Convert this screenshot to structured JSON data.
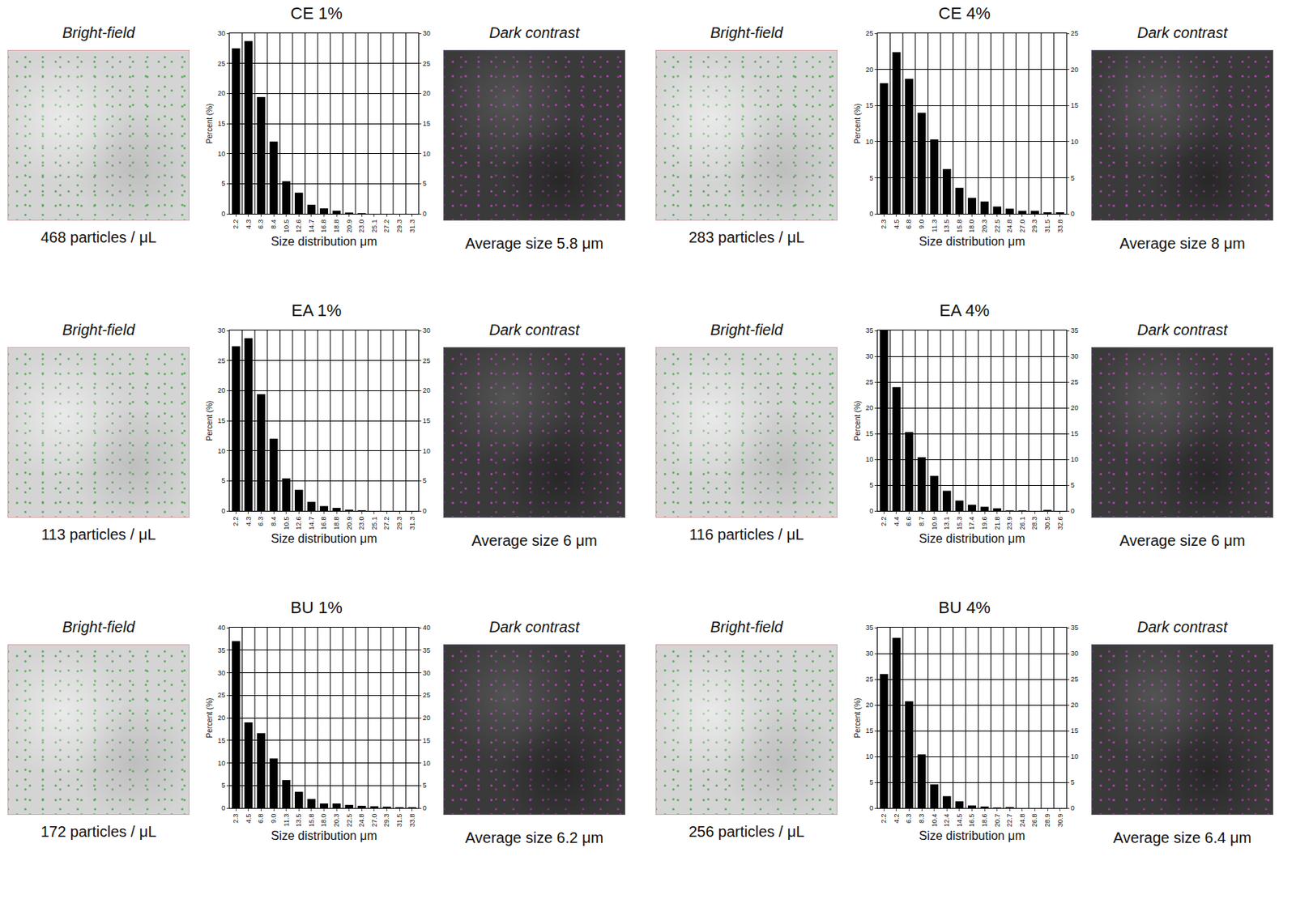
{
  "chart_data": [
    {
      "type": "bar",
      "title": "CE 1%",
      "x_label": "Size distribution μm",
      "y_label": "Percent (%)",
      "categories": [
        "2.2",
        "4.3",
        "6.3",
        "8.4",
        "10.5",
        "12.6",
        "14.7",
        "16.8",
        "18.8",
        "20.9",
        "23.0",
        "25.1",
        "27.2",
        "29.3",
        "31.3"
      ],
      "values": [
        27.5,
        28.7,
        19.4,
        12,
        5.4,
        3.5,
        1.5,
        0.9,
        0.5,
        0.2,
        0.1,
        0,
        0,
        0,
        0
      ],
      "color": "#000000",
      "ylim": [
        0,
        30
      ],
      "yticks": [
        0,
        5,
        10,
        15,
        20,
        25,
        30
      ],
      "grid": true,
      "image_labels": [
        "Bright-field",
        "Dark contrast"
      ],
      "annotations": [
        "468 particles / μL",
        "Average size 5.8 μm"
      ]
    },
    {
      "type": "bar",
      "title": "CE 4%",
      "x_label": "Size distribution μm",
      "y_label": "Percent (%)",
      "categories": [
        "2.3",
        "4.5",
        "6.8",
        "9.0",
        "11.3",
        "13.5",
        "15.8",
        "18.0",
        "20.3",
        "22.5",
        "24.8",
        "27.0",
        "29.3",
        "31.5",
        "33.8"
      ],
      "values": [
        18.1,
        22.4,
        18.7,
        14,
        10.3,
        6.2,
        3.6,
        2.2,
        1.7,
        1.0,
        0.7,
        0.4,
        0.4,
        0.2,
        0.2
      ],
      "color": "#000000",
      "ylim": [
        0,
        25
      ],
      "yticks": [
        0,
        5,
        10,
        15,
        20,
        25
      ],
      "grid": true,
      "image_labels": [
        "Bright-field",
        "Dark contrast"
      ],
      "annotations": [
        "283 particles / μL",
        "Average size 8 μm"
      ]
    },
    {
      "type": "bar",
      "title": "EA 1%",
      "x_label": "Size distribution μm",
      "y_label": "Percent (%)",
      "categories": [
        "2.2",
        "4.3",
        "6.3",
        "8.4",
        "10.5",
        "12.6",
        "14.7",
        "16.8",
        "18.8",
        "20.9",
        "23.0",
        "25.1",
        "27.2",
        "29.3",
        "31.3"
      ],
      "values": [
        27.4,
        28.7,
        19.4,
        12,
        5.4,
        3.5,
        1.5,
        0.8,
        0.5,
        0.2,
        0.1,
        0,
        0,
        0,
        0
      ],
      "color": "#000000",
      "ylim": [
        0,
        30
      ],
      "yticks": [
        0,
        5,
        10,
        15,
        20,
        25,
        30
      ],
      "grid": true,
      "image_labels": [
        "Bright-field",
        "Dark contrast"
      ],
      "annotations": [
        "113 particles / μL",
        "Average size 6 μm"
      ]
    },
    {
      "type": "bar",
      "title": "EA 4%",
      "x_label": "Size distribution μm",
      "y_label": "Percent (%)",
      "categories": [
        "2.2",
        "4.4",
        "6.6",
        "8.7",
        "10.9",
        "13.1",
        "15.3",
        "17.4",
        "19.6",
        "21.8",
        "23.9",
        "26.1",
        "28.3",
        "30.5",
        "32.6"
      ],
      "values": [
        35,
        24,
        15.3,
        10.4,
        6.8,
        3.9,
        2,
        1.2,
        0.8,
        0.5,
        0.1,
        0.1,
        0,
        0.2,
        0
      ],
      "color": "#000000",
      "ylim": [
        0,
        35
      ],
      "yticks": [
        0,
        5,
        10,
        15,
        20,
        25,
        30,
        35
      ],
      "grid": true,
      "image_labels": [
        "Bright-field",
        "Dark contrast"
      ],
      "annotations": [
        "116 particles / μL",
        "Average size 6 μm"
      ]
    },
    {
      "type": "bar",
      "title": "BU 1%",
      "x_label": "Size distribution μm",
      "y_label": "Percent (%)",
      "categories": [
        "2.3",
        "4.5",
        "6.8",
        "9.0",
        "11.3",
        "13.5",
        "15.8",
        "18.0",
        "20.3",
        "22.5",
        "24.8",
        "27.0",
        "29.3",
        "31.5",
        "33.8"
      ],
      "values": [
        37,
        19,
        16.6,
        11,
        6.2,
        3.6,
        2.0,
        1.0,
        1.0,
        0.7,
        0.5,
        0.4,
        0.3,
        0.2,
        0.2
      ],
      "color": "#000000",
      "ylim": [
        0,
        40
      ],
      "yticks": [
        0,
        5,
        10,
        15,
        20,
        25,
        30,
        35,
        40
      ],
      "grid": true,
      "image_labels": [
        "Bright-field",
        "Dark contrast"
      ],
      "annotations": [
        "172 particles / μL",
        "Average size 6.2 μm"
      ]
    },
    {
      "type": "bar",
      "title": "BU 4%",
      "x_label": "Size distribution μm",
      "y_label": "Percent (%)",
      "categories": [
        "2.2",
        "4.2",
        "6.3",
        "8.3",
        "10.4",
        "12.4",
        "14.5",
        "16.5",
        "18.6",
        "20.7",
        "22.7",
        "24.8",
        "26.8",
        "28.9",
        "30.9"
      ],
      "values": [
        26,
        33,
        20.7,
        10.4,
        4.6,
        2.3,
        1.3,
        0.5,
        0.3,
        0.1,
        0.2,
        0,
        0,
        0,
        0
      ],
      "color": "#000000",
      "ylim": [
        0,
        35
      ],
      "yticks": [
        0,
        5,
        10,
        15,
        20,
        25,
        30,
        35
      ],
      "grid": true,
      "image_labels": [
        "Bright-field",
        "Dark contrast"
      ],
      "annotations": [
        "256 particles / μL",
        "Average size 6.4 μm"
      ]
    }
  ]
}
